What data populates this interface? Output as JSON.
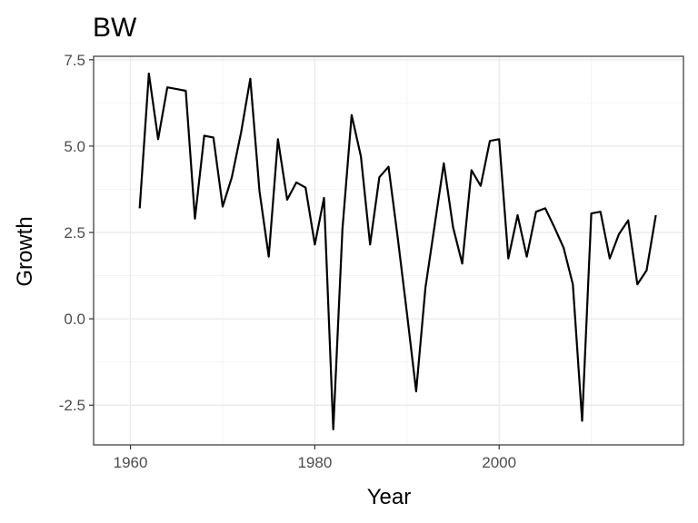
{
  "chart_data": {
    "type": "line",
    "title": "BW",
    "xlabel": "Year",
    "ylabel": "Growth",
    "xlim": [
      1956,
      2020
    ],
    "ylim": [
      -3.65,
      7.6
    ],
    "x_ticks": [
      1960,
      1980,
      2000
    ],
    "y_ticks": [
      -2.5,
      0.0,
      2.5,
      5.0,
      7.5
    ],
    "y_tick_labels": [
      "-2.5",
      "0.0",
      "2.5",
      "5.0",
      "7.5"
    ],
    "grid": true,
    "theme": "bw",
    "line_color": "#000000",
    "series": [
      {
        "x": [
          1961,
          1962,
          1963,
          1964,
          1965,
          1966,
          1967,
          1968,
          1969,
          1970,
          1971,
          1972,
          1973,
          1974,
          1975,
          1976,
          1977,
          1978,
          1979,
          1980,
          1981,
          1982,
          1983,
          1984,
          1985,
          1986,
          1987,
          1988,
          1989,
          1990,
          1991,
          1992,
          1993,
          1994,
          1995,
          1996,
          1997,
          1998,
          1999,
          2000,
          2001,
          2002,
          2003,
          2004,
          2005,
          2006,
          2007,
          2008,
          2009,
          2010,
          2011,
          2012,
          2013,
          2014,
          2015,
          2016,
          2017
        ],
        "values": [
          3.2,
          7.1,
          5.2,
          6.7,
          6.65,
          6.6,
          2.9,
          5.3,
          5.25,
          3.25,
          4.1,
          5.4,
          6.95,
          3.7,
          1.8,
          5.2,
          3.45,
          3.95,
          3.8,
          2.15,
          3.5,
          -3.2,
          2.6,
          5.9,
          4.7,
          2.15,
          4.1,
          4.4,
          2.35,
          0.15,
          -2.1,
          0.9,
          2.7,
          4.5,
          2.65,
          1.6,
          4.3,
          3.85,
          5.15,
          5.2,
          1.75,
          3.0,
          1.8,
          3.1,
          3.2,
          2.65,
          2.05,
          1.0,
          -2.95,
          3.05,
          3.1,
          1.75,
          2.45,
          2.85,
          1.0,
          1.4,
          3.0
        ]
      }
    ]
  }
}
